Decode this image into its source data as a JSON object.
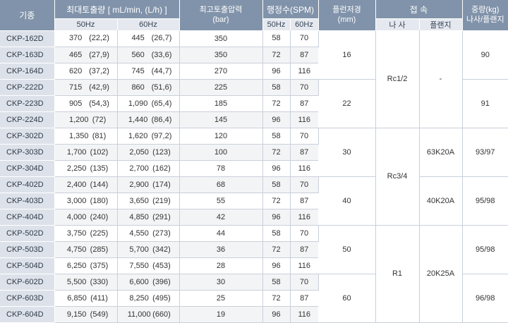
{
  "header": {
    "model": "기종",
    "flow": "최대토출량 [ mL/min, (L/h) ]",
    "pressure": "최고토출압력",
    "pressure_unit": "(bar)",
    "stroke": "행정수(SPM)",
    "plunger": "플런저경",
    "plunger_unit": "(mm)",
    "connection": "접 속",
    "weight": "중량(kg)",
    "weight_sub": "나사/플랜지",
    "hz50": "50Hz",
    "hz60": "60Hz",
    "stroke50": "50Hz",
    "stroke60": "60Hz",
    "screw": "나 사",
    "flange": "플랜지"
  },
  "rows": [
    {
      "model": "CKP-162D",
      "f50": "370",
      "f50h": "(22,2)",
      "f60": "445",
      "f60h": "(26,7)",
      "bar": "350",
      "s50": "58",
      "s60": "70"
    },
    {
      "model": "CKP-163D",
      "f50": "465",
      "f50h": "(27,9)",
      "f60": "560",
      "f60h": "(33,6)",
      "bar": "350",
      "s50": "72",
      "s60": "87"
    },
    {
      "model": "CKP-164D",
      "f50": "620",
      "f50h": "(37,2)",
      "f60": "745",
      "f60h": "(44,7)",
      "bar": "270",
      "s50": "96",
      "s60": "116"
    },
    {
      "model": "CKP-222D",
      "f50": "715",
      "f50h": "(42,9)",
      "f60": "860",
      "f60h": "(51,6)",
      "bar": "225",
      "s50": "58",
      "s60": "70"
    },
    {
      "model": "CKP-223D",
      "f50": "905",
      "f50h": "(54,3)",
      "f60": "1,090",
      "f60h": "(65,4)",
      "bar": "185",
      "s50": "72",
      "s60": "87"
    },
    {
      "model": "CKP-224D",
      "f50": "1,200",
      "f50h": "(72)",
      "f60": "1,440",
      "f60h": "(86,4)",
      "bar": "145",
      "s50": "96",
      "s60": "116"
    },
    {
      "model": "CKP-302D",
      "f50": "1,350",
      "f50h": "(81)",
      "f60": "1,620",
      "f60h": "(97,2)",
      "bar": "120",
      "s50": "58",
      "s60": "70"
    },
    {
      "model": "CKP-303D",
      "f50": "1,700",
      "f50h": "(102)",
      "f60": "2,050",
      "f60h": "(123)",
      "bar": "100",
      "s50": "72",
      "s60": "87"
    },
    {
      "model": "CKP-304D",
      "f50": "2,250",
      "f50h": "(135)",
      "f60": "2,700",
      "f60h": "(162)",
      "bar": "78",
      "s50": "96",
      "s60": "116"
    },
    {
      "model": "CKP-402D",
      "f50": "2,400",
      "f50h": "(144)",
      "f60": "2,900",
      "f60h": "(174)",
      "bar": "68",
      "s50": "58",
      "s60": "70"
    },
    {
      "model": "CKP-403D",
      "f50": "3,000",
      "f50h": "(180)",
      "f60": "3,650",
      "f60h": "(219)",
      "bar": "55",
      "s50": "72",
      "s60": "87"
    },
    {
      "model": "CKP-404D",
      "f50": "4,000",
      "f50h": "(240)",
      "f60": "4,850",
      "f60h": "(291)",
      "bar": "42",
      "s50": "96",
      "s60": "116"
    },
    {
      "model": "CKP-502D",
      "f50": "3,750",
      "f50h": "(225)",
      "f60": "4,550",
      "f60h": "(273)",
      "bar": "44",
      "s50": "58",
      "s60": "70"
    },
    {
      "model": "CKP-503D",
      "f50": "4,750",
      "f50h": "(285)",
      "f60": "5,700",
      "f60h": "(342)",
      "bar": "36",
      "s50": "72",
      "s60": "87"
    },
    {
      "model": "CKP-504D",
      "f50": "6,250",
      "f50h": "(375)",
      "f60": "7,550",
      "f60h": "(453)",
      "bar": "28",
      "s50": "96",
      "s60": "116"
    },
    {
      "model": "CKP-602D",
      "f50": "5,500",
      "f50h": "(330)",
      "f60": "6,600",
      "f60h": "(396)",
      "bar": "30",
      "s50": "58",
      "s60": "70"
    },
    {
      "model": "CKP-603D",
      "f50": "6,850",
      "f50h": "(411)",
      "f60": "8,250",
      "f60h": "(495)",
      "bar": "25",
      "s50": "72",
      "s60": "87"
    },
    {
      "model": "CKP-604D",
      "f50": "9,150",
      "f50h": "(549)",
      "f60": "11,000",
      "f60h": "(660)",
      "bar": "19",
      "s50": "96",
      "s60": "116"
    }
  ],
  "plunger_groups": [
    "16",
    "22",
    "30",
    "40",
    "50",
    "60"
  ],
  "screw_groups": [
    "Rc1/2",
    "Rc3/4",
    "R1"
  ],
  "flange_groups": [
    "-",
    "63K20A",
    "40K20A",
    "20K25A"
  ],
  "weight_groups": [
    "90",
    "91",
    "93/97",
    "95/98",
    "95/98",
    "96/98"
  ]
}
